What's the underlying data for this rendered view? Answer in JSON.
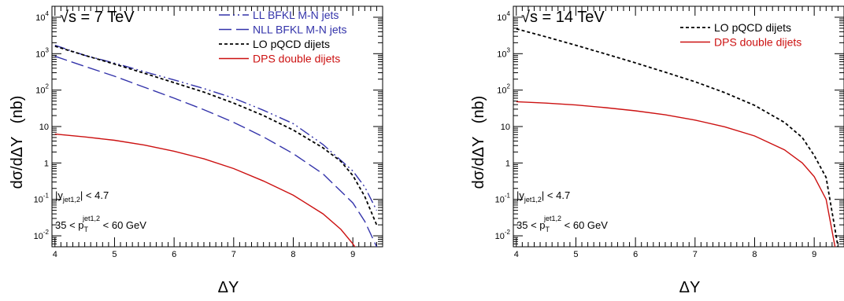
{
  "chart_data": [
    {
      "type": "line",
      "energy_label": "√s = 7 TeV",
      "xlabel": "ΔY",
      "ylabel": "dσ/dΔY   (nb)",
      "xlim": [
        3.95,
        9.5
      ],
      "ylim": [
        0.005,
        20000
      ],
      "yscale": "log",
      "x_ticks": [
        4,
        5,
        6,
        7,
        8,
        9
      ],
      "y_ticks": [
        {
          "value": 0.01,
          "base": "10",
          "exp": "-2"
        },
        {
          "value": 0.1,
          "base": "10",
          "exp": "-1"
        },
        {
          "value": 1,
          "base": "1",
          "exp": ""
        },
        {
          "value": 10,
          "base": "10",
          "exp": ""
        },
        {
          "value": 100,
          "base": "10",
          "exp": "2"
        },
        {
          "value": 1000,
          "base": "10",
          "exp": "3"
        },
        {
          "value": 10000,
          "base": "10",
          "exp": "4"
        }
      ],
      "cuts": [
        {
          "lhs": "|y",
          "sub": "jet1,2",
          "rhs": "| < 4.7"
        },
        {
          "lhs": "35 < p",
          "sub": "T",
          "sup": "jet1,2",
          "rhs": " < 60 GeV"
        }
      ],
      "legend_position": "top-right",
      "series": [
        {
          "name": "LL BFKL M-N jets",
          "color": "#3333aa",
          "dash": "dash-dot-dot",
          "x": [
            4,
            4.5,
            5,
            5.5,
            6,
            6.5,
            7,
            7.5,
            8,
            8.5,
            9,
            9.2,
            9.4
          ],
          "y": [
            1700,
            900,
            550,
            320,
            190,
            110,
            60,
            28,
            12,
            3.2,
            0.6,
            0.22,
            0.05
          ]
        },
        {
          "name": "NLL BFKL M-N jets",
          "color": "#3333aa",
          "dash": "long-dash",
          "x": [
            4,
            4.5,
            5,
            5.5,
            6,
            6.5,
            7,
            7.5,
            8,
            8.5,
            9,
            9.2,
            9.4
          ],
          "y": [
            850,
            450,
            240,
            120,
            60,
            29,
            13,
            5.2,
            1.8,
            0.5,
            0.08,
            0.025,
            0.005
          ]
        },
        {
          "name": "LO pQCD dijets",
          "color": "#000000",
          "dash": "short-dash",
          "x": [
            4,
            4.5,
            5,
            5.5,
            6,
            6.5,
            7,
            7.5,
            8,
            8.5,
            8.8,
            9,
            9.2,
            9.4
          ],
          "y": [
            1600,
            900,
            520,
            290,
            160,
            88,
            44,
            20,
            8,
            2.6,
            1.1,
            0.45,
            0.12,
            0.02
          ]
        },
        {
          "name": "DPS double dijets",
          "color": "#cc1111",
          "dash": "solid",
          "x": [
            4,
            4.5,
            5,
            5.5,
            6,
            6.5,
            7,
            7.5,
            8,
            8.5,
            8.8,
            9,
            9.2
          ],
          "y": [
            6.2,
            5.2,
            4.2,
            3.1,
            2.1,
            1.3,
            0.7,
            0.32,
            0.13,
            0.04,
            0.015,
            0.006,
            0.002
          ]
        }
      ]
    },
    {
      "type": "line",
      "energy_label": "√s = 14 TeV",
      "xlabel": "ΔY",
      "ylabel": "dσ/dΔY   (nb)",
      "xlim": [
        3.95,
        9.5
      ],
      "ylim": [
        0.005,
        20000
      ],
      "yscale": "log",
      "x_ticks": [
        4,
        5,
        6,
        7,
        8,
        9
      ],
      "y_ticks": [
        {
          "value": 0.01,
          "base": "10",
          "exp": "-2"
        },
        {
          "value": 0.1,
          "base": "10",
          "exp": "-1"
        },
        {
          "value": 1,
          "base": "1",
          "exp": ""
        },
        {
          "value": 10,
          "base": "10",
          "exp": ""
        },
        {
          "value": 100,
          "base": "10",
          "exp": "2"
        },
        {
          "value": 1000,
          "base": "10",
          "exp": "3"
        },
        {
          "value": 10000,
          "base": "10",
          "exp": "4"
        }
      ],
      "cuts": [
        {
          "lhs": "|y",
          "sub": "jet1,2",
          "rhs": "| < 4.7"
        },
        {
          "lhs": "35 < p",
          "sub": "T",
          "sup": "jet1,2",
          "rhs": " < 60 GeV"
        }
      ],
      "legend_position": "top-right",
      "series": [
        {
          "name": "LO pQCD dijets",
          "color": "#000000",
          "dash": "short-dash",
          "x": [
            4,
            4.5,
            5,
            5.5,
            6,
            6.5,
            7,
            7.5,
            8,
            8.5,
            8.8,
            9,
            9.2,
            9.4
          ],
          "y": [
            4800,
            2900,
            1700,
            980,
            560,
            310,
            170,
            85,
            38,
            13,
            5,
            1.6,
            0.4,
            0.005
          ]
        },
        {
          "name": "DPS double dijets",
          "color": "#cc1111",
          "dash": "solid",
          "x": [
            4,
            4.5,
            5,
            5.5,
            6,
            6.5,
            7,
            7.5,
            8,
            8.5,
            8.8,
            9,
            9.2,
            9.35
          ],
          "y": [
            48,
            44,
            39,
            33,
            27,
            21,
            15,
            9.8,
            5.5,
            2.3,
            1,
            0.42,
            0.1,
            0.005
          ]
        }
      ]
    }
  ]
}
